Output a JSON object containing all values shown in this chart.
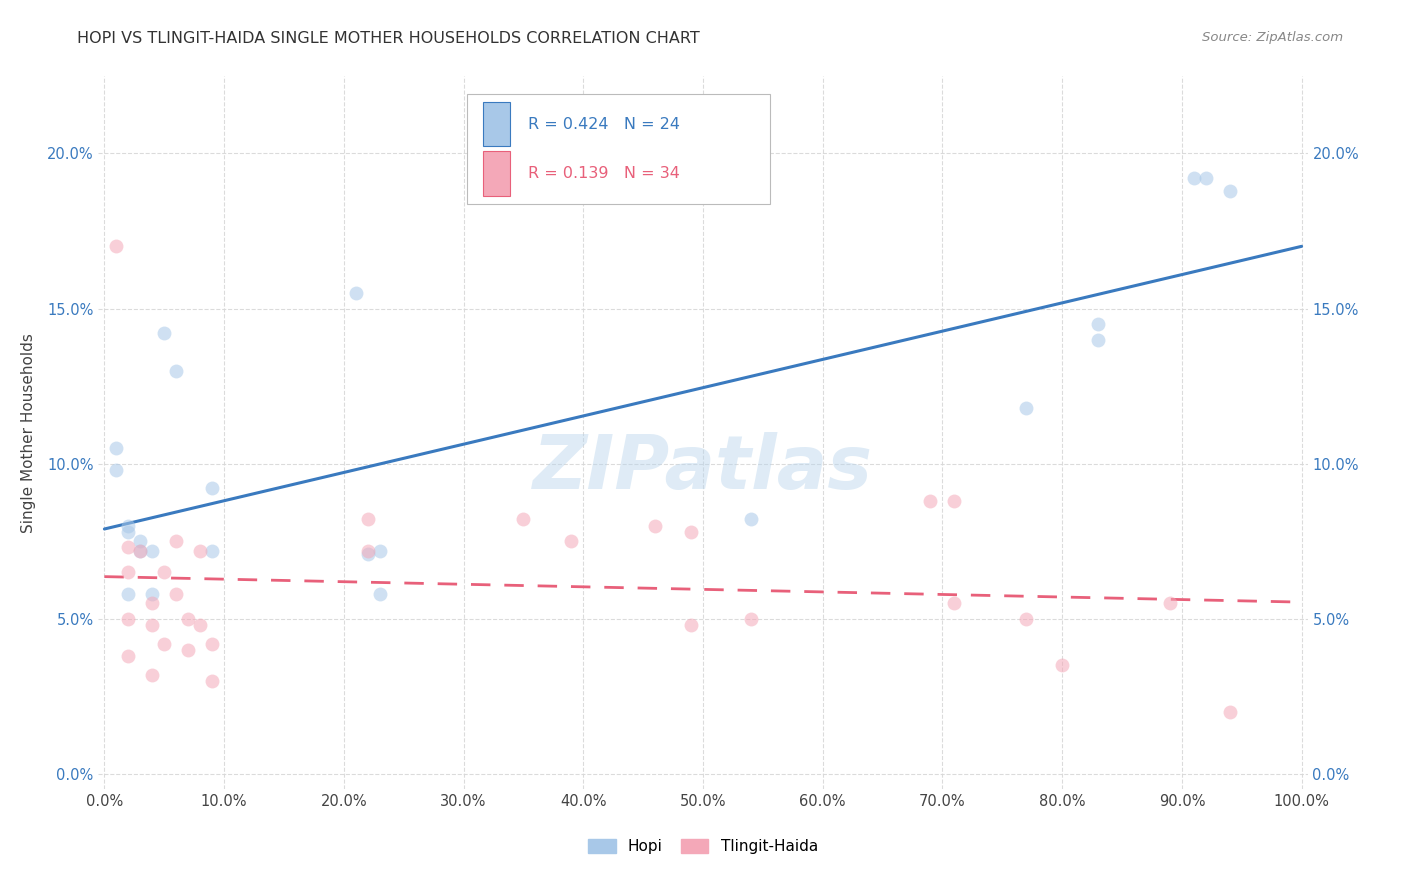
{
  "title": "HOPI VS TLINGIT-HAIDA SINGLE MOTHER HOUSEHOLDS CORRELATION CHART",
  "source": "Source: ZipAtlas.com",
  "ylabel": "Single Mother Households",
  "background_color": "#ffffff",
  "grid_color": "#d8d8d8",
  "hopi_color": "#a8c8e8",
  "tlingit_color": "#f4a8b8",
  "hopi_line_color": "#3a7abf",
  "tlingit_line_color": "#e8607a",
  "hopi_R": 0.424,
  "hopi_N": 24,
  "tlingit_R": 0.139,
  "tlingit_N": 34,
  "xlim": [
    -0.005,
    1.005
  ],
  "ylim": [
    -0.005,
    0.225
  ],
  "xticks": [
    0.0,
    0.1,
    0.2,
    0.3,
    0.4,
    0.5,
    0.6,
    0.7,
    0.8,
    0.9,
    1.0
  ],
  "yticks": [
    0.0,
    0.05,
    0.1,
    0.15,
    0.2
  ],
  "hopi_x": [
    0.01,
    0.01,
    0.02,
    0.02,
    0.02,
    0.03,
    0.03,
    0.04,
    0.04,
    0.05,
    0.06,
    0.09,
    0.09,
    0.21,
    0.22,
    0.23,
    0.23,
    0.54,
    0.77,
    0.83,
    0.83,
    0.91,
    0.92,
    0.94
  ],
  "hopi_y": [
    0.105,
    0.098,
    0.08,
    0.078,
    0.058,
    0.075,
    0.072,
    0.072,
    0.058,
    0.142,
    0.13,
    0.092,
    0.072,
    0.155,
    0.071,
    0.072,
    0.058,
    0.082,
    0.118,
    0.145,
    0.14,
    0.192,
    0.192,
    0.188
  ],
  "tlingit_x": [
    0.01,
    0.02,
    0.02,
    0.02,
    0.02,
    0.03,
    0.04,
    0.04,
    0.04,
    0.05,
    0.05,
    0.06,
    0.06,
    0.07,
    0.07,
    0.08,
    0.08,
    0.09,
    0.09,
    0.22,
    0.22,
    0.35,
    0.39,
    0.46,
    0.49,
    0.49,
    0.54,
    0.69,
    0.71,
    0.71,
    0.77,
    0.8,
    0.89,
    0.94
  ],
  "tlingit_y": [
    0.17,
    0.073,
    0.065,
    0.05,
    0.038,
    0.072,
    0.055,
    0.048,
    0.032,
    0.065,
    0.042,
    0.075,
    0.058,
    0.05,
    0.04,
    0.072,
    0.048,
    0.042,
    0.03,
    0.082,
    0.072,
    0.082,
    0.075,
    0.08,
    0.078,
    0.048,
    0.05,
    0.088,
    0.088,
    0.055,
    0.05,
    0.035,
    0.055,
    0.02
  ],
  "watermark": "ZIPatlas",
  "marker_size": 100,
  "marker_alpha": 0.55
}
